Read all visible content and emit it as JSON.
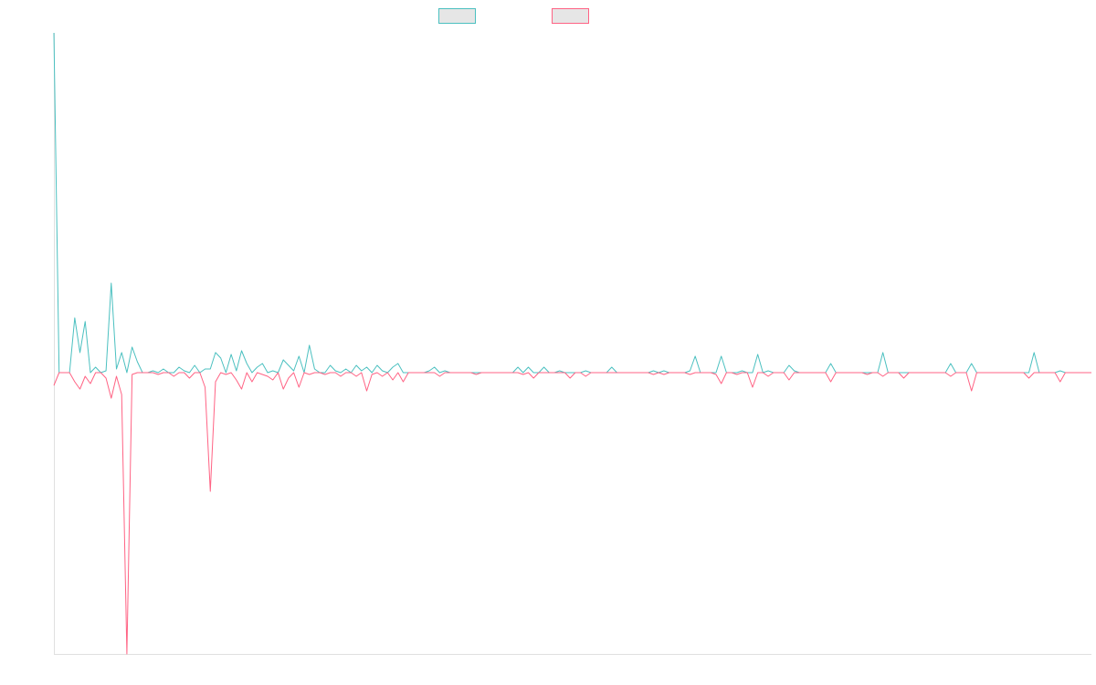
{
  "chart_data": {
    "type": "line",
    "ylim": [
      -308,
      372
    ],
    "series": [
      {
        "color": "#4bc0c0",
        "values": [
          372,
          0,
          0,
          0,
          60,
          22,
          56,
          0,
          6,
          0,
          2,
          98,
          4,
          22,
          0,
          28,
          12,
          0,
          0,
          2,
          0,
          4,
          0,
          0,
          6,
          2,
          0,
          8,
          0,
          4,
          4,
          22,
          16,
          0,
          20,
          2,
          24,
          10,
          0,
          6,
          10,
          0,
          2,
          0,
          14,
          8,
          2,
          18,
          0,
          30,
          4,
          0,
          0,
          8,
          2,
          0,
          4,
          0,
          8,
          2,
          6,
          0,
          8,
          2,
          0,
          6,
          10,
          0,
          0,
          0,
          0,
          0,
          2,
          6,
          0,
          2,
          0,
          0,
          0,
          0,
          0,
          0,
          0,
          0,
          0,
          0,
          0,
          0,
          0,
          6,
          0,
          6,
          0,
          0,
          6,
          0,
          0,
          2,
          0,
          0,
          0,
          0,
          2,
          0,
          0,
          0,
          0,
          6,
          0,
          0,
          0,
          0,
          0,
          0,
          0,
          2,
          0,
          2,
          0,
          0,
          0,
          0,
          2,
          18,
          0,
          0,
          0,
          0,
          18,
          0,
          0,
          0,
          2,
          0,
          0,
          20,
          0,
          2,
          0,
          0,
          0,
          8,
          2,
          0,
          0,
          0,
          0,
          0,
          0,
          10,
          0,
          0,
          0,
          0,
          0,
          0,
          0,
          0,
          0,
          22,
          0,
          0,
          0,
          0,
          0,
          0,
          0,
          0,
          0,
          0,
          0,
          0,
          10,
          0,
          0,
          0,
          10,
          0,
          0,
          0,
          0,
          0,
          0,
          0,
          0,
          0,
          0,
          0,
          22,
          0,
          0,
          0,
          0,
          2,
          0,
          0,
          0,
          0,
          0,
          0
        ]
      },
      {
        "color": "#ff6384",
        "values": [
          -14,
          0,
          0,
          0,
          -10,
          -18,
          -4,
          -12,
          0,
          0,
          -6,
          -28,
          -4,
          -24,
          -308,
          -2,
          0,
          0,
          0,
          0,
          -2,
          0,
          0,
          -4,
          0,
          0,
          -6,
          0,
          0,
          -16,
          -130,
          -10,
          0,
          -2,
          0,
          -8,
          -18,
          0,
          -10,
          0,
          -2,
          -4,
          -8,
          0,
          -18,
          -6,
          0,
          -16,
          0,
          -2,
          0,
          0,
          -2,
          0,
          0,
          -4,
          0,
          0,
          -4,
          0,
          -20,
          -2,
          0,
          -4,
          0,
          -8,
          0,
          -10,
          0,
          0,
          0,
          0,
          0,
          0,
          -4,
          0,
          0,
          0,
          0,
          0,
          0,
          -2,
          0,
          0,
          0,
          0,
          0,
          0,
          0,
          0,
          -2,
          0,
          -6,
          0,
          0,
          0,
          0,
          0,
          0,
          -6,
          0,
          0,
          -4,
          0,
          0,
          0,
          0,
          0,
          0,
          0,
          0,
          0,
          0,
          0,
          0,
          -2,
          0,
          -2,
          0,
          0,
          0,
          0,
          -2,
          0,
          0,
          0,
          0,
          -2,
          -12,
          0,
          0,
          -2,
          0,
          0,
          -16,
          0,
          0,
          -4,
          0,
          0,
          0,
          -8,
          0,
          0,
          0,
          0,
          0,
          0,
          0,
          -10,
          0,
          0,
          0,
          0,
          0,
          0,
          -2,
          0,
          0,
          -4,
          0,
          0,
          0,
          -6,
          0,
          0,
          0,
          0,
          0,
          0,
          0,
          0,
          -4,
          0,
          0,
          0,
          -20,
          0,
          0,
          0,
          0,
          0,
          0,
          0,
          0,
          0,
          0,
          -6,
          0,
          0,
          0,
          0,
          0,
          -10,
          0,
          0,
          0,
          0,
          0,
          0
        ]
      }
    ]
  }
}
